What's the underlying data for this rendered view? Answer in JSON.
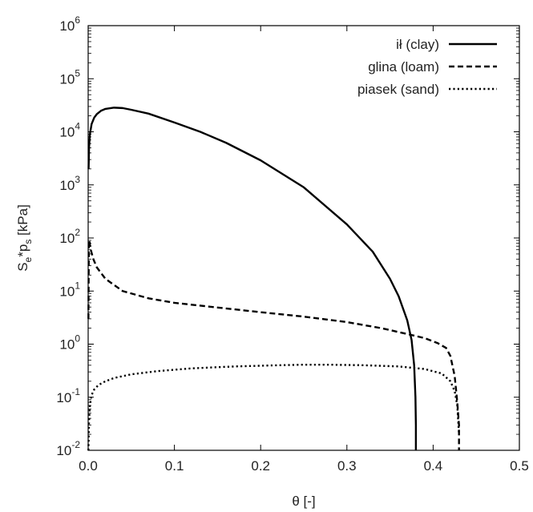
{
  "chart_data": {
    "type": "line",
    "xlabel": "θ [-]",
    "ylabel_parts": [
      "S",
      "e",
      "*p",
      "s",
      " [kPa]"
    ],
    "x_range": [
      0,
      0.5
    ],
    "y_range": [
      0.01,
      1000000
    ],
    "y_scale": "log",
    "grid": false,
    "legend_position": "top-right",
    "x_ticks": [
      "0.0",
      "0.1",
      "0.2",
      "0.3",
      "0.4",
      "0.5"
    ],
    "y_ticks": [
      {
        "base": "10",
        "exp": "-2"
      },
      {
        "base": "10",
        "exp": "-1"
      },
      {
        "base": "10",
        "exp": "0"
      },
      {
        "base": "10",
        "exp": "1"
      },
      {
        "base": "10",
        "exp": "2"
      },
      {
        "base": "10",
        "exp": "3"
      },
      {
        "base": "10",
        "exp": "4"
      },
      {
        "base": "10",
        "exp": "5"
      },
      {
        "base": "10",
        "exp": "6"
      }
    ],
    "series": [
      {
        "name": "ił (clay)",
        "line_style": "solid",
        "x": [
          0.0005,
          0.001,
          0.002,
          0.004,
          0.007,
          0.01,
          0.015,
          0.02,
          0.03,
          0.04,
          0.05,
          0.07,
          0.1,
          0.13,
          0.16,
          0.2,
          0.25,
          0.3,
          0.33,
          0.35,
          0.36,
          0.37,
          0.375,
          0.378,
          0.3795,
          0.38,
          0.38
        ],
        "y": [
          2000,
          5000,
          9000,
          14000,
          18500,
          21500,
          25000,
          27000,
          28500,
          28000,
          26000,
          22000,
          15000,
          10000,
          6200,
          2900,
          900,
          180,
          55,
          17,
          8,
          2.8,
          1.2,
          0.4,
          0.1,
          0.03,
          0.01
        ]
      },
      {
        "name": "glina (loam)",
        "line_style": "dashed",
        "x": [
          0.0003,
          0.0008,
          0.0012,
          0.0018,
          0.003,
          0.006,
          0.01,
          0.02,
          0.04,
          0.07,
          0.1,
          0.15,
          0.2,
          0.25,
          0.3,
          0.34,
          0.37,
          0.39,
          0.405,
          0.415,
          0.42,
          0.425,
          0.428,
          0.43,
          0.43
        ],
        "y": [
          3,
          70,
          90,
          80,
          60,
          40,
          28,
          17,
          10,
          7.3,
          6.0,
          4.9,
          4.0,
          3.3,
          2.6,
          2.0,
          1.55,
          1.3,
          1.05,
          0.85,
          0.6,
          0.25,
          0.08,
          0.03,
          0.01
        ]
      },
      {
        "name": "piasek (sand)",
        "line_style": "dotted",
        "x": [
          0.0003,
          0.001,
          0.002,
          0.004,
          0.007,
          0.012,
          0.02,
          0.03,
          0.05,
          0.08,
          0.12,
          0.17,
          0.22,
          0.25,
          0.28,
          0.32,
          0.36,
          0.39,
          0.41,
          0.42,
          0.425,
          0.428,
          0.43
        ],
        "y": [
          0.01,
          0.035,
          0.07,
          0.11,
          0.14,
          0.17,
          0.2,
          0.23,
          0.27,
          0.31,
          0.35,
          0.38,
          0.4,
          0.41,
          0.41,
          0.4,
          0.38,
          0.34,
          0.28,
          0.2,
          0.13,
          0.07,
          0.02
        ]
      }
    ]
  }
}
